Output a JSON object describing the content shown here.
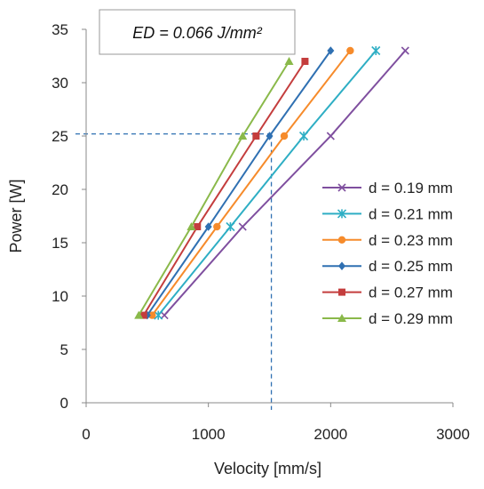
{
  "chart_data": {
    "type": "line",
    "title": "",
    "xlabel": "Velocity [mm/s]",
    "ylabel": "Power [W]",
    "xlim": [
      0,
      3000
    ],
    "ylim": [
      0,
      35
    ],
    "xticks": [
      0,
      1000,
      2000,
      3000
    ],
    "yticks": [
      0,
      5,
      10,
      15,
      20,
      25,
      30,
      35
    ],
    "grid": false,
    "legend_position": "right",
    "annotation": "ED = 0.066 J/mm²",
    "reference_point": {
      "x": 1515,
      "y": 25.2
    },
    "series": [
      {
        "name": "d = 0.19 mm",
        "color": "#7f4f9f",
        "marker": "x",
        "x": [
          640,
          1280,
          2000,
          2610
        ],
        "y": [
          8.2,
          16.5,
          25,
          33
        ]
      },
      {
        "name": "d = 0.21 mm",
        "color": "#2eaec4",
        "marker": "star",
        "x": [
          590,
          1180,
          1780,
          2370
        ],
        "y": [
          8.2,
          16.5,
          25,
          33
        ]
      },
      {
        "name": "d = 0.23 mm",
        "color": "#f68b2b",
        "marker": "circle",
        "x": [
          540,
          1070,
          1620,
          2160
        ],
        "y": [
          8.2,
          16.5,
          25,
          33
        ]
      },
      {
        "name": "d = 0.25 mm",
        "color": "#2f70b2",
        "marker": "diamond",
        "x": [
          500,
          1000,
          1500,
          2000
        ],
        "y": [
          8.2,
          16.5,
          25,
          33
        ]
      },
      {
        "name": "d = 0.27 mm",
        "color": "#c43d3d",
        "marker": "square",
        "x": [
          470,
          910,
          1390,
          1790
        ],
        "y": [
          8.2,
          16.5,
          25,
          32
        ]
      },
      {
        "name": "d = 0.29 mm",
        "color": "#8ab94a",
        "marker": "triangle",
        "x": [
          430,
          860,
          1280,
          1660
        ],
        "y": [
          8.2,
          16.5,
          25,
          32
        ]
      }
    ]
  }
}
